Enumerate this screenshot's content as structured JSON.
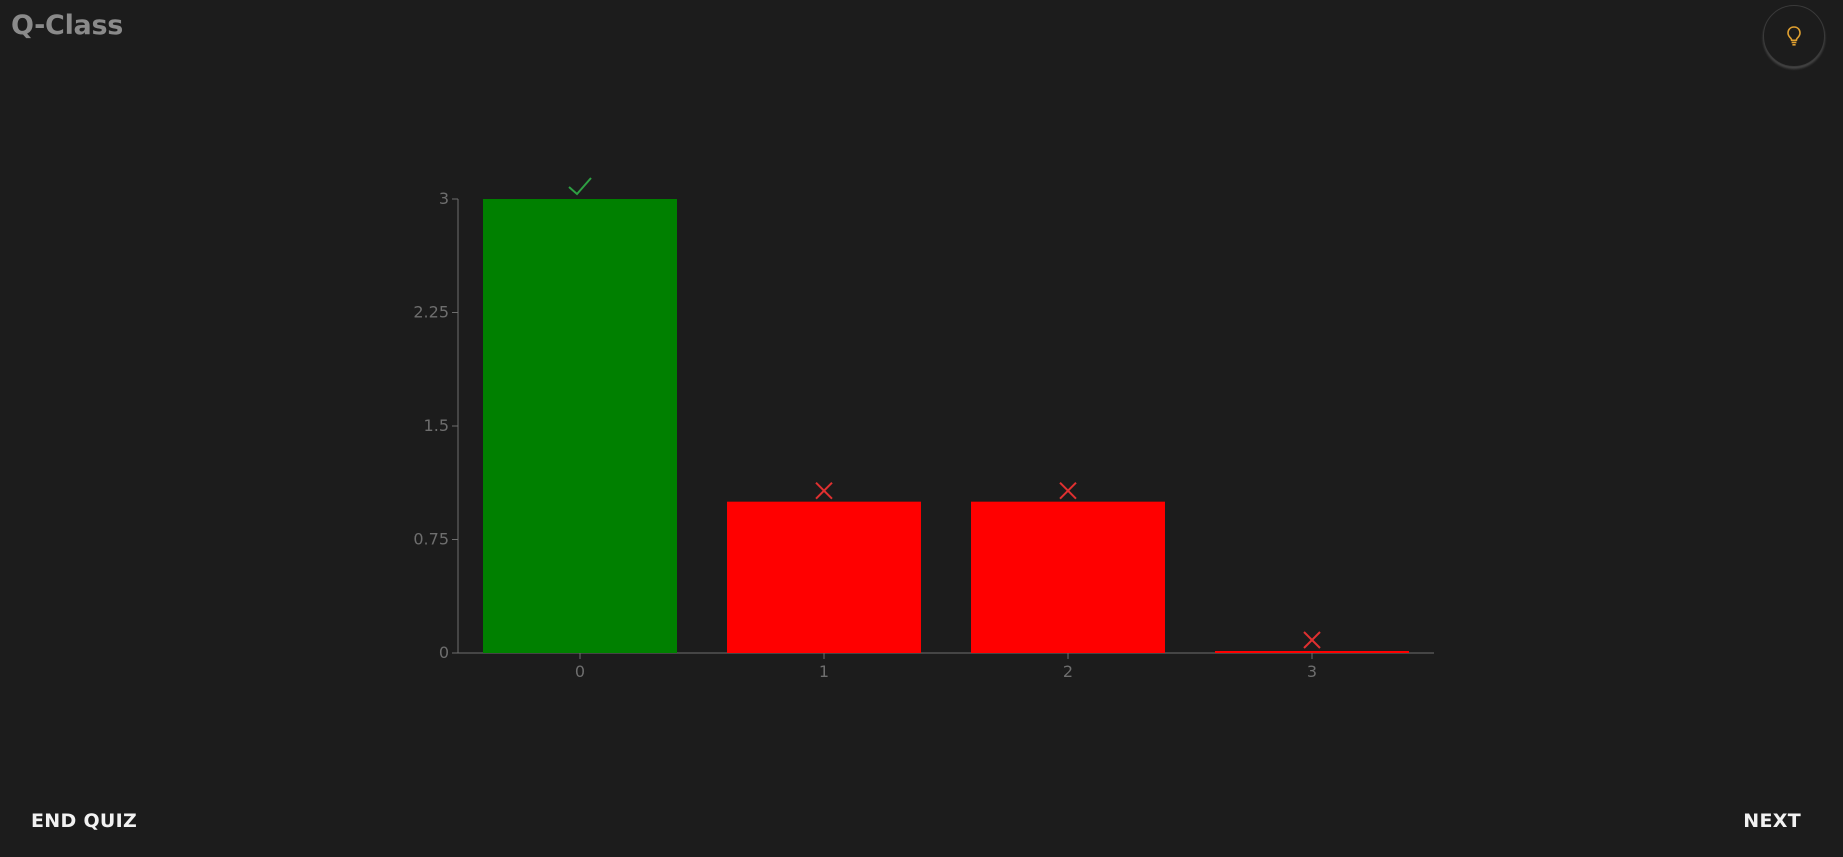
{
  "app": {
    "title": "Q-Class"
  },
  "header": {
    "theme_toggle_icon": "lightbulb-icon",
    "theme_toggle_color": "#e0a030"
  },
  "footer": {
    "end_quiz_label": "END QUIZ",
    "next_label": "NEXT"
  },
  "chart_data": {
    "type": "bar",
    "categories": [
      "0",
      "1",
      "2",
      "3"
    ],
    "values": [
      3,
      1,
      1,
      0
    ],
    "correct": [
      true,
      false,
      false,
      false
    ],
    "bar_colors": [
      "#008000",
      "#ff0000",
      "#ff0000",
      "#ff0000"
    ],
    "marker_icons": [
      "check-icon",
      "cross-icon",
      "cross-icon",
      "cross-icon"
    ],
    "marker_colors": [
      "#2ea043",
      "#e03030",
      "#e03030",
      "#e03030"
    ],
    "yticks": [
      0,
      0.75,
      1.5,
      2.25,
      3
    ],
    "ytick_labels": [
      "0",
      "0.75",
      "1.5",
      "2.25",
      "3"
    ],
    "ylim": [
      0,
      3
    ],
    "title": "",
    "xlabel": "",
    "ylabel": "",
    "grid": false,
    "axis_color": "#6e6e6e"
  }
}
